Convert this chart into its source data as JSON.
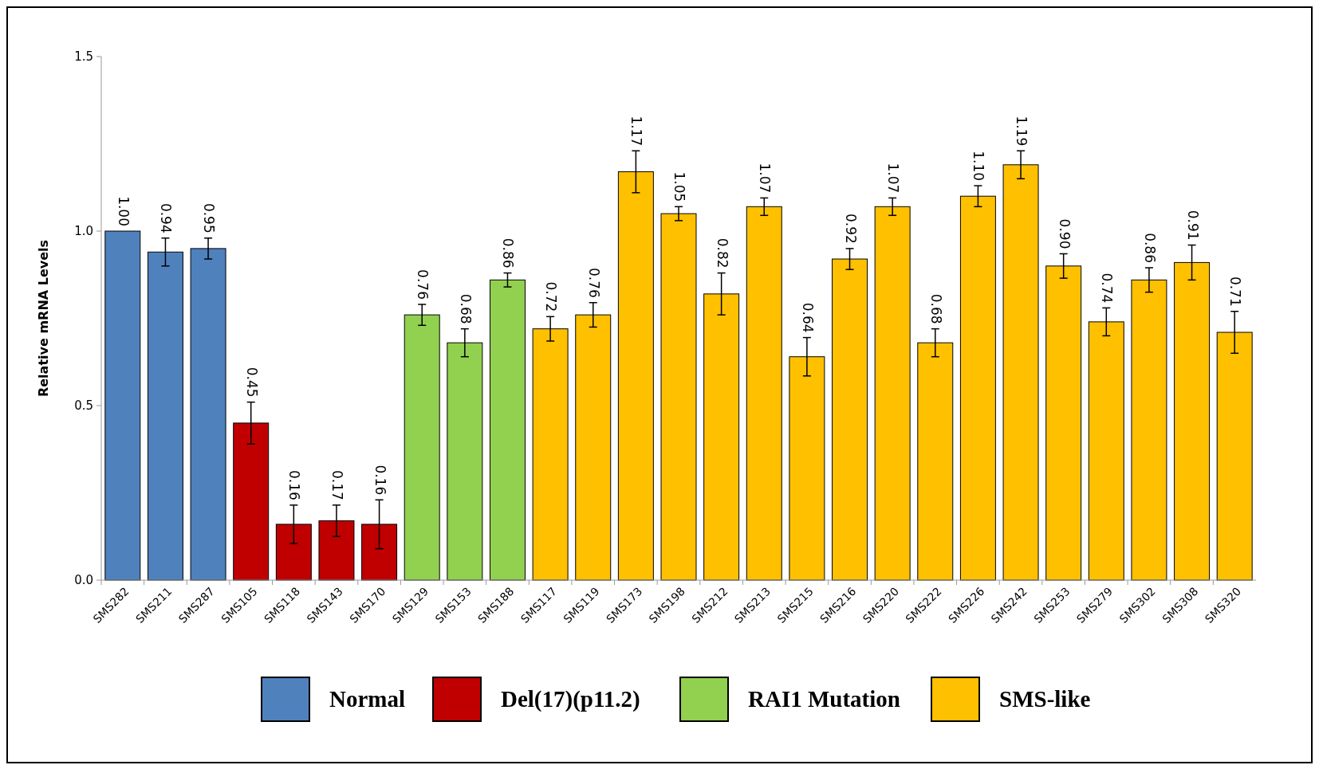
{
  "chart_data": {
    "type": "bar",
    "ylabel": "Relative mRNA Levels",
    "categories": [
      "SMS282",
      "SMS211",
      "SMS287",
      "SMS105",
      "SMS118",
      "SMS143",
      "SMS170",
      "SMS129",
      "SMS153",
      "SMS188",
      "SMS117",
      "SMS119",
      "SMS173",
      "SMS198",
      "SMS212",
      "SMS213",
      "SMS215",
      "SMS216",
      "SMS220",
      "SMS222",
      "SMS226",
      "SMS242",
      "SMS253",
      "SMS279",
      "SMS302",
      "SMS308",
      "SMS320"
    ],
    "ylim": [
      0,
      1.5
    ],
    "yticks": [
      {
        "value": 0,
        "label": "0.0"
      },
      {
        "value": 0.5,
        "label": "0.5"
      },
      {
        "value": 1,
        "label": "1.0"
      },
      {
        "value": 1.5,
        "label": "1.5"
      }
    ],
    "grid": false,
    "legend": "bottom",
    "series": [
      {
        "name": "Normal",
        "color": "#4f81bd",
        "values": [
          1.0,
          0.94,
          0.95,
          null,
          null,
          null,
          null,
          null,
          null,
          null,
          null,
          null,
          null,
          null,
          null,
          null,
          null,
          null,
          null,
          null,
          null,
          null,
          null,
          null,
          null,
          null,
          null
        ],
        "errors": [
          null,
          0.04,
          0.03,
          null,
          null,
          null,
          null,
          null,
          null,
          null,
          null,
          null,
          null,
          null,
          null,
          null,
          null,
          null,
          null,
          null,
          null,
          null,
          null,
          null,
          null,
          null,
          null
        ],
        "value_labels": [
          "1.00",
          "0.94",
          "0.95",
          null,
          null,
          null,
          null,
          null,
          null,
          null,
          null,
          null,
          null,
          null,
          null,
          null,
          null,
          null,
          null,
          null,
          null,
          null,
          null,
          null,
          null,
          null,
          null
        ]
      },
      {
        "name": "Del(17)(p11.2)",
        "color": "#c00000",
        "values": [
          null,
          null,
          null,
          0.45,
          0.16,
          0.17,
          0.16,
          null,
          null,
          null,
          null,
          null,
          null,
          null,
          null,
          null,
          null,
          null,
          null,
          null,
          null,
          null,
          null,
          null,
          null,
          null,
          null
        ],
        "errors": [
          null,
          null,
          null,
          0.06,
          0.055,
          0.045,
          0.07,
          null,
          null,
          null,
          null,
          null,
          null,
          null,
          null,
          null,
          null,
          null,
          null,
          null,
          null,
          null,
          null,
          null,
          null,
          null,
          null
        ],
        "value_labels": [
          null,
          null,
          null,
          "0.45",
          "0.16",
          "0.17",
          "0.16",
          null,
          null,
          null,
          null,
          null,
          null,
          null,
          null,
          null,
          null,
          null,
          null,
          null,
          null,
          null,
          null,
          null,
          null,
          null,
          null
        ]
      },
      {
        "name": "RAI1 Mutation",
        "color": "#92d050",
        "values": [
          null,
          null,
          null,
          null,
          null,
          null,
          null,
          0.76,
          0.68,
          0.86,
          null,
          null,
          null,
          null,
          null,
          null,
          null,
          null,
          null,
          null,
          null,
          null,
          null,
          null,
          null,
          null,
          null
        ],
        "errors": [
          null,
          null,
          null,
          null,
          null,
          null,
          null,
          0.03,
          0.04,
          0.02,
          null,
          null,
          null,
          null,
          null,
          null,
          null,
          null,
          null,
          null,
          null,
          null,
          null,
          null,
          null,
          null,
          null
        ],
        "value_labels": [
          null,
          null,
          null,
          null,
          null,
          null,
          null,
          "0.76",
          "0.68",
          "0.86",
          null,
          null,
          null,
          null,
          null,
          null,
          null,
          null,
          null,
          null,
          null,
          null,
          null,
          null,
          null,
          null,
          null
        ]
      },
      {
        "name": "SMS-like",
        "color": "#ffc000",
        "values": [
          null,
          null,
          null,
          null,
          null,
          null,
          null,
          null,
          null,
          null,
          0.72,
          0.76,
          1.17,
          1.05,
          0.82,
          1.07,
          0.64,
          0.92,
          1.07,
          0.68,
          1.1,
          1.19,
          0.9,
          0.74,
          0.86,
          0.91,
          0.71
        ],
        "errors": [
          null,
          null,
          null,
          null,
          null,
          null,
          null,
          null,
          null,
          null,
          0.035,
          0.035,
          0.06,
          0.02,
          0.06,
          0.025,
          0.055,
          0.03,
          0.025,
          0.04,
          0.03,
          0.04,
          0.035,
          0.04,
          0.035,
          0.05,
          0.06
        ],
        "value_labels": [
          null,
          null,
          null,
          null,
          null,
          null,
          null,
          null,
          null,
          null,
          "0.72",
          "0.76",
          "1.17",
          "1.05",
          "0.82",
          "1.07",
          "0.64",
          "0.92",
          "1.07",
          "0.68",
          "1.10",
          "1.19",
          "0.90",
          "0.74",
          "0.86",
          "0.91",
          "0.71"
        ]
      }
    ]
  }
}
